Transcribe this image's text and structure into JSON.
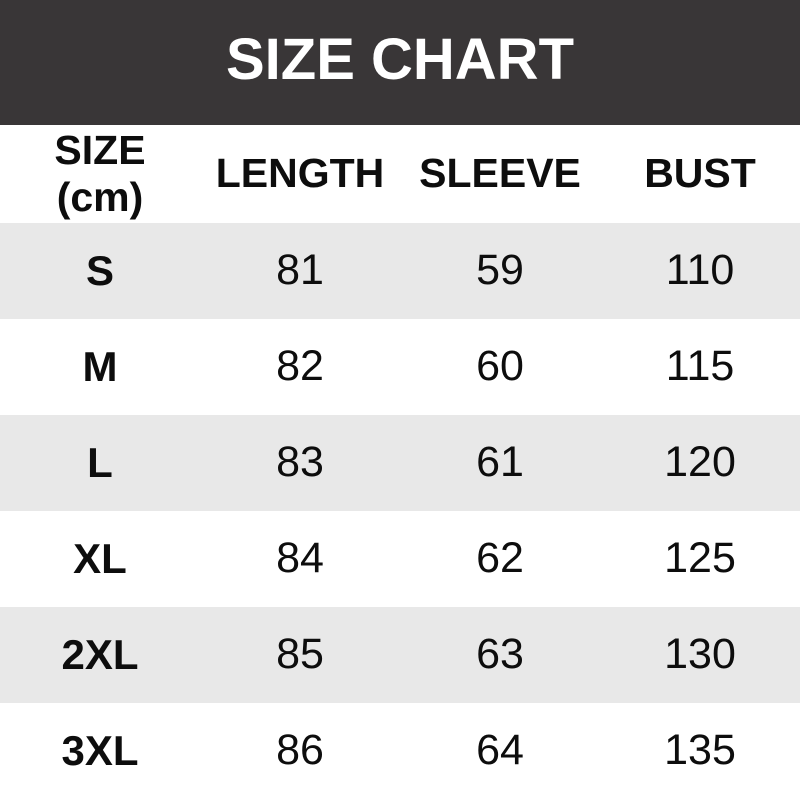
{
  "banner": {
    "title": "SIZE CHART"
  },
  "table": {
    "header": {
      "size": "SIZE",
      "size_unit": "(cm)",
      "length": "LENGTH",
      "sleeve": "SLEEVE",
      "bust": "BUST"
    },
    "rows": [
      {
        "size": "S",
        "length": "81",
        "sleeve": "59",
        "bust": "110"
      },
      {
        "size": "M",
        "length": "82",
        "sleeve": "60",
        "bust": "115"
      },
      {
        "size": "L",
        "length": "83",
        "sleeve": "61",
        "bust": "120"
      },
      {
        "size": "XL",
        "length": "84",
        "sleeve": "62",
        "bust": "125"
      },
      {
        "size": "2XL",
        "length": "85",
        "sleeve": "63",
        "bust": "130"
      },
      {
        "size": "3XL",
        "length": "86",
        "sleeve": "64",
        "bust": "135"
      }
    ]
  },
  "colors": {
    "header_bg": "#393637",
    "header_text": "#ffffff",
    "row_bg": "#ffffff",
    "row_alt_bg": "#e8e8e8",
    "text": "#0d0d0d"
  },
  "chart_data": {
    "type": "table",
    "title": "SIZE CHART",
    "unit": "cm",
    "columns": [
      "SIZE (cm)",
      "LENGTH",
      "SLEEVE",
      "BUST"
    ],
    "rows": [
      [
        "S",
        81,
        59,
        110
      ],
      [
        "M",
        82,
        60,
        115
      ],
      [
        "L",
        83,
        61,
        120
      ],
      [
        "XL",
        84,
        62,
        125
      ],
      [
        "2XL",
        85,
        63,
        130
      ],
      [
        "3XL",
        86,
        64,
        135
      ]
    ],
    "layout_hints": {
      "striped_rows": true,
      "stripe_on": [
        "S",
        "L",
        "2XL"
      ],
      "text_align": "center"
    }
  }
}
